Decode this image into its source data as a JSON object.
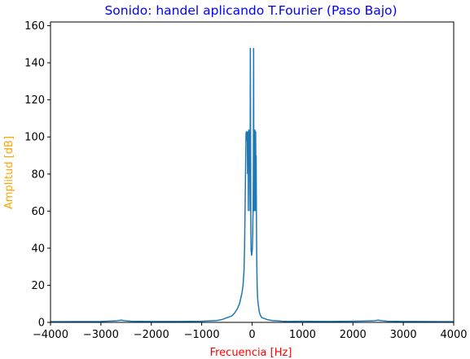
{
  "chart_data": {
    "type": "line",
    "title": "Sonido: handel aplicando T.Fourier (Paso Bajo)",
    "xlabel": "Frecuencia [Hz]",
    "ylabel": "Amplitud [dB]",
    "xlim": [
      -4000,
      4000
    ],
    "ylim": [
      0,
      162
    ],
    "xticks": [
      -4000,
      -3000,
      -2000,
      -1000,
      0,
      1000,
      2000,
      3000,
      4000
    ],
    "xtick_labels": [
      "−4000",
      "−3000",
      "−2000",
      "−1000",
      "0",
      "1000",
      "2000",
      "3000",
      "4000"
    ],
    "yticks": [
      0,
      20,
      40,
      60,
      80,
      100,
      120,
      140,
      160
    ],
    "ytick_labels": [
      "0",
      "20",
      "40",
      "60",
      "80",
      "100",
      "120",
      "140",
      "160"
    ],
    "grid": false,
    "colors": {
      "line": "#1f77b4",
      "title": "#0000ff",
      "xlabel": "#ff0000",
      "ylabel": "#ffa500"
    },
    "series": [
      {
        "x": [
          -4000,
          -3000,
          -2700,
          -2600,
          -2500,
          -2400,
          -2000,
          -1500,
          -1000,
          -700,
          -600,
          -500,
          -400,
          -350,
          -300,
          -250,
          -200,
          -180,
          -160,
          -150,
          -140,
          -130,
          -120,
          -110,
          -105,
          -100,
          -95,
          -90,
          -85,
          -80,
          -75,
          -70,
          -65,
          -60,
          -55,
          -50,
          -45,
          -40,
          -35,
          -30,
          -25,
          -20,
          -15,
          -10,
          -5,
          0,
          5,
          10,
          15,
          20,
          25,
          30,
          35,
          40,
          45,
          50,
          55,
          60,
          65,
          70,
          75,
          80,
          85,
          90,
          95,
          100,
          105,
          110,
          120,
          130,
          140,
          150,
          160,
          180,
          200,
          250,
          300,
          350,
          400,
          500,
          600,
          700,
          1000,
          1500,
          2000,
          2400,
          2500,
          2600,
          2700,
          3000,
          4000
        ],
        "y": [
          0.4,
          0.5,
          0.8,
          1.2,
          0.8,
          0.6,
          0.5,
          0.5,
          0.6,
          1.0,
          1.5,
          2.5,
          3.5,
          5,
          7,
          10,
          16,
          20,
          28,
          40,
          60,
          82,
          102,
          103,
          100,
          98,
          102,
          80,
          103,
          90,
          60,
          85,
          104,
          102,
          90,
          103,
          80,
          60,
          148,
          100,
          50,
          38,
          40,
          36,
          37,
          38,
          40,
          45,
          55,
          60,
          80,
          148,
          70,
          100,
          60,
          85,
          104,
          60,
          95,
          103,
          80,
          90,
          60,
          40,
          28,
          20,
          16,
          13,
          10,
          8,
          6,
          5,
          4,
          3,
          2.5,
          2,
          1.5,
          1.2,
          1.0,
          0.8,
          0.6,
          0.5,
          0.6,
          0.5,
          0.6,
          0.8,
          1.2,
          0.8,
          0.6,
          0.5,
          0.4
        ]
      }
    ]
  }
}
